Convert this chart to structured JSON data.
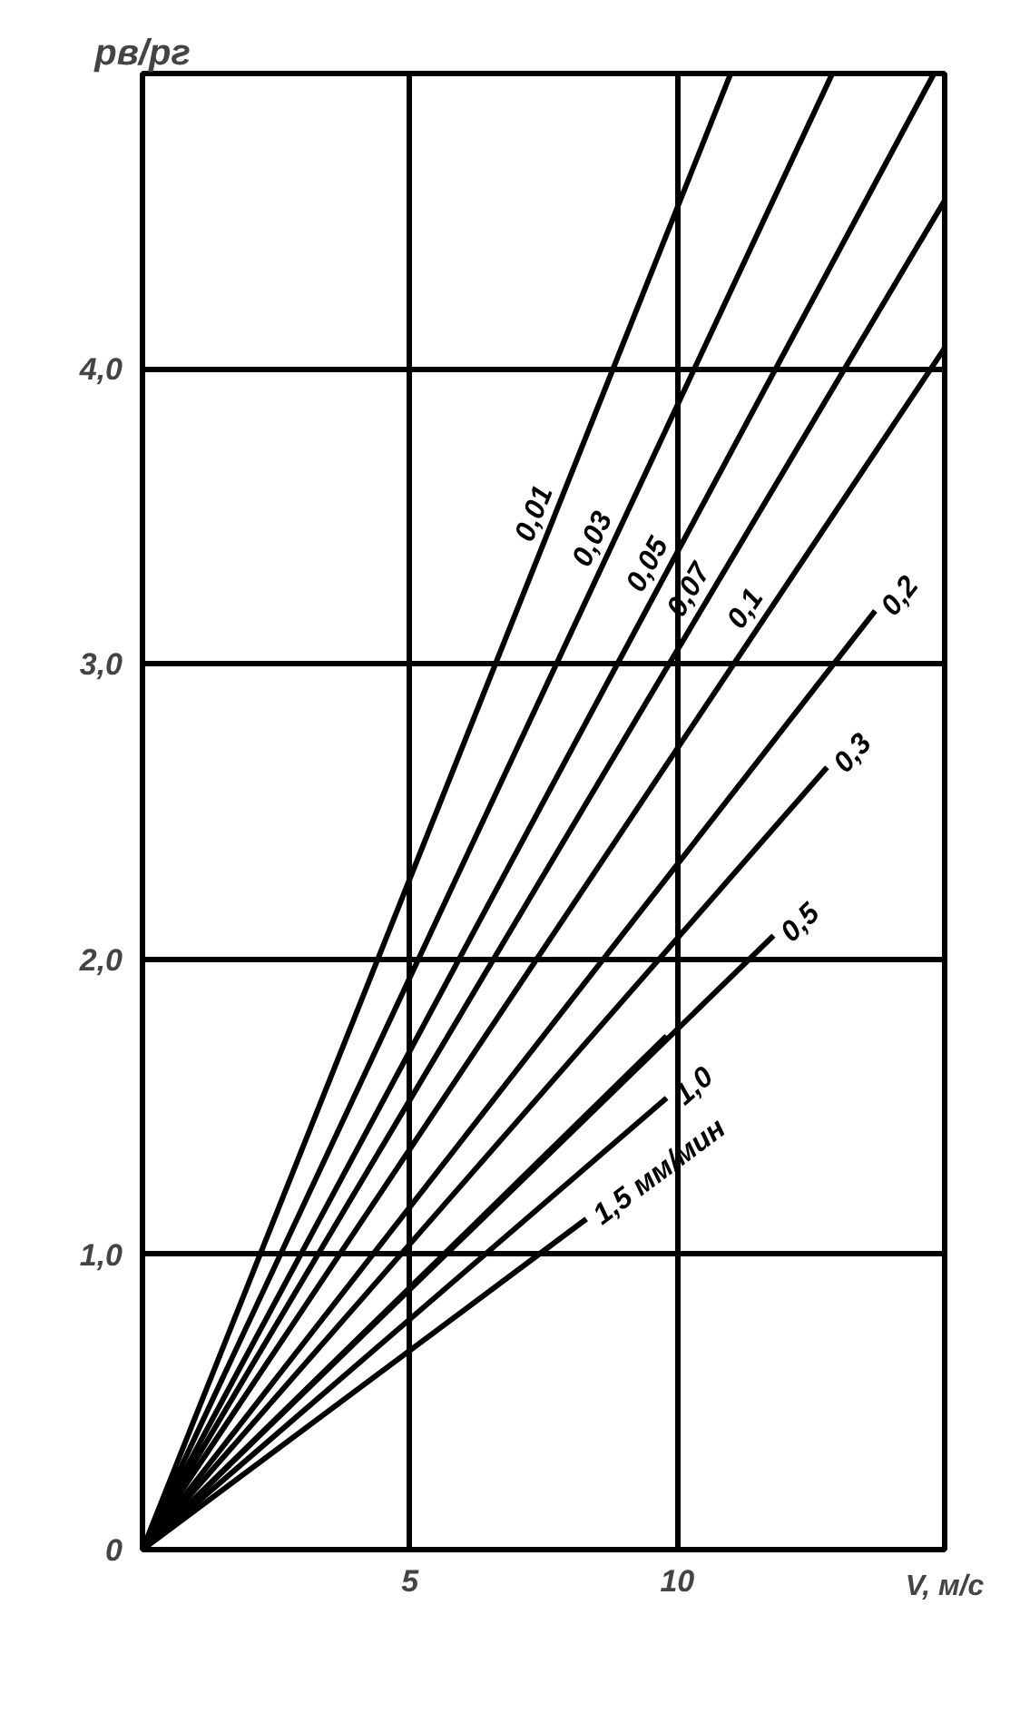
{
  "chart_data": {
    "type": "line",
    "xlabel": "V, м/с",
    "ylabel": "pв/pг",
    "xlim": [
      0,
      15
    ],
    "ylim": [
      0,
      5
    ],
    "xticks": [
      {
        "value": 0,
        "label": null
      },
      5,
      10,
      {
        "value": 15,
        "label": null
      }
    ],
    "yticks": [
      "0",
      {
        "value": 1,
        "label": "1,0"
      },
      {
        "value": 2,
        "label": "2,0"
      },
      {
        "value": 3,
        "label": "3,0"
      },
      {
        "value": 4,
        "label": "4,0"
      },
      {
        "value": 5,
        "label": null
      }
    ],
    "grid": true,
    "marker": "none",
    "line_style": "solid",
    "series": [
      {
        "name": "0,01",
        "color": "#000000",
        "x": [
          0,
          11.0
        ],
        "values": [
          0,
          5.0
        ]
      },
      {
        "name": "0,03",
        "color": "#000000",
        "x": [
          0,
          12.9
        ],
        "values": [
          0,
          5.0
        ]
      },
      {
        "name": "0,05",
        "color": "#000000",
        "x": [
          0,
          14.8
        ],
        "values": [
          0,
          5.0
        ]
      },
      {
        "name": "0,07",
        "color": "#000000",
        "x": [
          0,
          15
        ],
        "values": [
          0,
          4.57
        ]
      },
      {
        "name": "0,1",
        "color": "#000000",
        "x": [
          0,
          15
        ],
        "values": [
          0,
          4.07
        ]
      },
      {
        "name": "0,2",
        "color": "#000000",
        "x": [
          0,
          13.7
        ],
        "values": [
          0,
          3.18
        ]
      },
      {
        "name": "0,3",
        "color": "#000000",
        "x": [
          0,
          12.8
        ],
        "values": [
          0,
          2.65
        ]
      },
      {
        "name": "0,5",
        "color": "#000000",
        "x": [
          0,
          11.8
        ],
        "values": [
          0,
          2.08
        ]
      },
      {
        "color": "#000000",
        "x": [
          0,
          9.8
        ],
        "values": [
          0,
          1.74
        ]
      },
      {
        "name": "1,0",
        "color": "#000000",
        "x": [
          0,
          9.8
        ],
        "values": [
          0,
          1.53
        ]
      },
      {
        "name": "1,5 мм/мин",
        "color": "#000000",
        "x": [
          0,
          8.3
        ],
        "values": [
          0,
          1.12
        ]
      }
    ]
  }
}
